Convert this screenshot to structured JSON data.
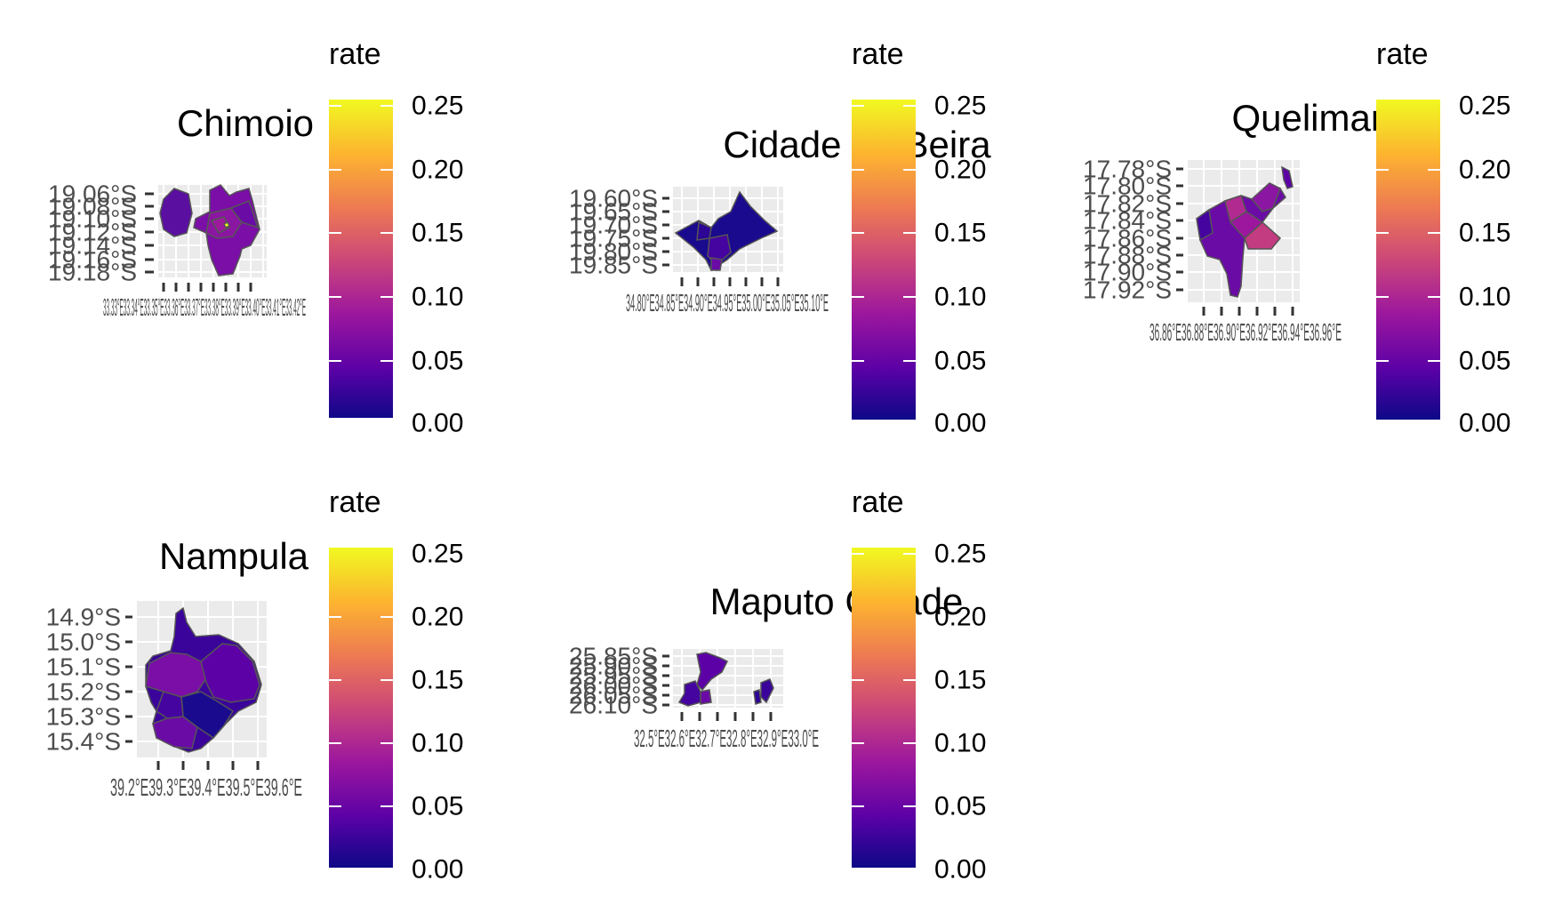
{
  "colorbar": {
    "title": "rate",
    "ticks": [
      "0.25",
      "0.20",
      "0.15",
      "0.10",
      "0.05",
      "0.00"
    ],
    "range": [
      0,
      0.25
    ],
    "colors": [
      "#0d0887",
      "#5c01a6",
      "#9c179e",
      "#cc4778",
      "#ed7953",
      "#fdb42f",
      "#f0f921"
    ]
  },
  "panels": [
    {
      "id": "chimoio",
      "title": "Chimoio",
      "y_ticks": [
        "19.06°S",
        "19.08°S",
        "19.10°S",
        "19.12°S",
        "19.14°S",
        "19.16°S",
        "19.18°S"
      ],
      "x_label_text": "33.33°E33.34°E33.35°E33.36°E33.37°E33.38°E33.39°E33.40°E33.41°E33.42°E",
      "legend": {
        "title": "rate",
        "ticks": [
          "0.25",
          "0.20",
          "0.15",
          "0.10",
          "0.05",
          "0.00"
        ]
      }
    },
    {
      "id": "beira",
      "title": "Cidade da Beira",
      "y_ticks": [
        "19.60°S",
        "19.65°S",
        "19.70°S",
        "19.75°S",
        "19.80°S",
        "19.85°S"
      ],
      "x_label_text": "34.80°E34.85°E34.90°E34.95°E35.00°E35.05°E35.10°E",
      "legend": {
        "title": "rate",
        "ticks": [
          "0.25",
          "0.20",
          "0.15",
          "0.10",
          "0.05",
          "0.00"
        ]
      }
    },
    {
      "id": "quelimane",
      "title": "Quelimane",
      "y_ticks": [
        "17.78°S",
        "17.80°S",
        "17.82°S",
        "17.84°S",
        "17.86°S",
        "17.88°S",
        "17.90°S",
        "17.92°S"
      ],
      "x_label_text": "36.86°E36.88°E36.90°E36.92°E36.94°E36.96°E",
      "legend": {
        "title": "rate",
        "ticks": [
          "0.25",
          "0.20",
          "0.15",
          "0.10",
          "0.05",
          "0.00"
        ]
      }
    },
    {
      "id": "nampula",
      "title": "Nampula",
      "y_ticks": [
        "14.9°S",
        "15.0°S",
        "15.1°S",
        "15.2°S",
        "15.3°S",
        "15.4°S"
      ],
      "x_label_text": "39.2°E39.3°E39.4°E39.5°E39.6°E",
      "legend": {
        "title": "rate",
        "ticks": [
          "0.25",
          "0.20",
          "0.15",
          "0.10",
          "0.05",
          "0.00"
        ]
      }
    },
    {
      "id": "maputo",
      "title": "Maputo Cidade",
      "y_ticks": [
        "25.85°S",
        "25.90°S",
        "25.95°S",
        "26.00°S",
        "26.05°S",
        "26.10°S"
      ],
      "x_label_text": "32.5°E32.6°E32.7°E32.8°E32.9°E33.0°E",
      "legend": {
        "title": "rate",
        "ticks": [
          "0.25",
          "0.20",
          "0.15",
          "0.10",
          "0.05",
          "0.00"
        ]
      }
    }
  ]
}
